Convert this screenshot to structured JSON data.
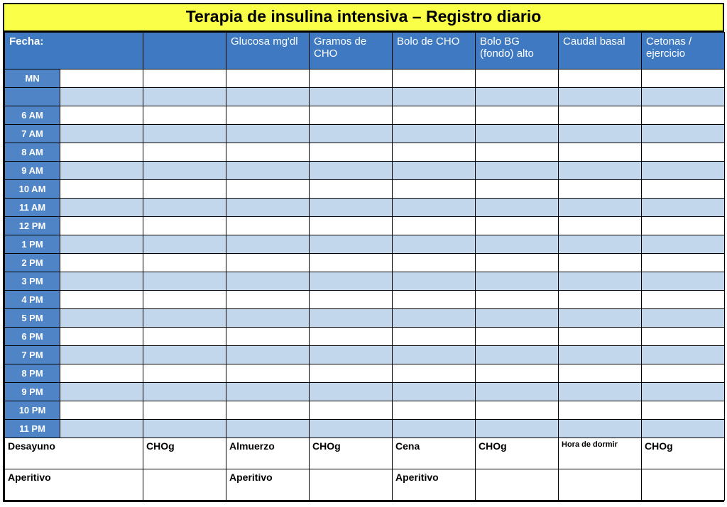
{
  "title": "Terapia de insulina intensiva – Registro diario",
  "headers": {
    "date": "Fecha:",
    "blank1": "",
    "blank2": "",
    "glucose": "Glucosa mg'dl",
    "cho_grams": "Gramos de CHO",
    "cho_bolus": "Bolo de CHO",
    "bg_bolus": "Bolo BG (fondo) alto",
    "basal": "Caudal basal",
    "ketones": "Cetonas / ejercicio"
  },
  "times": [
    "MN",
    "",
    "6 AM",
    "7 AM",
    "8 AM",
    "9 AM",
    "10 AM",
    "11 AM",
    "12 PM",
    "1 PM",
    "2 PM",
    "3 PM",
    "4 PM",
    "5 PM",
    "6 PM",
    "7 PM",
    "8 PM",
    "9 PM",
    "10 PM",
    "11 PM"
  ],
  "summary": {
    "row1": {
      "c1": "Desayuno",
      "c2": "",
      "c3": "CHOg",
      "c4": "Almuerzo",
      "c5": "CHOg",
      "c6": "Cena",
      "c7": "CHOg",
      "c8": "Hora de dormir",
      "c9": "CHOg"
    },
    "row2": {
      "c1": "Aperitivo",
      "c2": "",
      "c3": "",
      "c4": "Aperitivo",
      "c5": "",
      "c6": "Aperitivo",
      "c7": "",
      "c8": "",
      "c9": ""
    }
  },
  "colors": {
    "title_bg": "#faff48",
    "header_bg": "#3e79c1",
    "timecol_bg": "#4f85c7",
    "row_alt_bg": "#c2d7ec",
    "border": "#000000",
    "text_light": "#ffffff"
  }
}
